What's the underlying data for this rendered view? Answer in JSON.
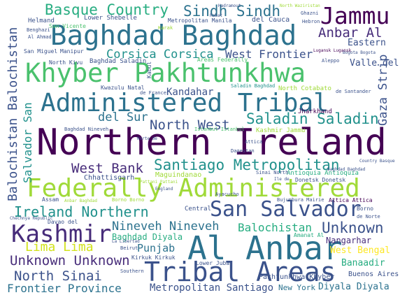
{
  "words": [
    {
      "text": "Northern Ireland",
      "color": "#440154"
    },
    {
      "text": "Federally Administered",
      "color": "#a0da39"
    },
    {
      "text": "Khyber Pakhtunkhwa",
      "color": "#4ac16d"
    },
    {
      "text": "Administered Tribal",
      "color": "#2c728e"
    },
    {
      "text": "Baghdad Baghdad",
      "color": "#2c728e"
    },
    {
      "text": "Al Anbar",
      "color": "#2c728e"
    },
    {
      "text": "Tribal Areas",
      "color": "#3b528b"
    },
    {
      "text": "Kashmir",
      "color": "#472c7a"
    },
    {
      "text": "San Salvador",
      "color": "#3b528b"
    },
    {
      "text": "Jammu",
      "color": "#440154"
    },
    {
      "text": "Santiago Metropolitan",
      "color": "#21918c"
    },
    {
      "text": "Basque Country",
      "color": "#27ad81"
    },
    {
      "text": "Sindh Sindh",
      "color": "#2c728e"
    },
    {
      "text": "Saladin Saladin",
      "color": "#21918c"
    },
    {
      "text": "Corsica Corsica",
      "color": "#21918c"
    },
    {
      "text": "Ireland Northern",
      "color": "#21918c"
    },
    {
      "text": "Balochistan Balochistan",
      "color": "#3b528b"
    },
    {
      "text": "West Bank",
      "color": "#472c7a"
    },
    {
      "text": "North West",
      "color": "#3b528b"
    },
    {
      "text": "Unknown Unknown",
      "color": "#472c7a"
    },
    {
      "text": "Unknown",
      "color": "#3b528b"
    },
    {
      "text": "Frontier Province",
      "color": "#2c728e"
    },
    {
      "text": "North Sinai",
      "color": "#3b528b"
    },
    {
      "text": "Nineveh Nineveh",
      "color": "#2c728e"
    },
    {
      "text": "Lima Lima",
      "color": "#d2e21b"
    },
    {
      "text": "Metropolitan Santiago",
      "color": "#3b528b"
    },
    {
      "text": "Balochistan",
      "color": "#27ad81"
    },
    {
      "text": "Anbar Al",
      "color": "#472c7a"
    },
    {
      "text": "West Frontier",
      "color": "#3b528b"
    },
    {
      "text": "Kandahar",
      "color": "#3b528b"
    },
    {
      "text": "del Sur",
      "color": "#2c728e"
    },
    {
      "text": "Salvador San",
      "color": "#21918c"
    },
    {
      "text": "Gaza Strip",
      "color": "#3b528b"
    },
    {
      "text": "Punjab",
      "color": "#2c728e"
    },
    {
      "text": "Nangarhar",
      "color": "#472c7a"
    },
    {
      "text": "Banaadir",
      "color": "#27ad81"
    },
    {
      "text": "West Bengal",
      "color": "#fde725"
    },
    {
      "text": "Diyala Diyala",
      "color": "#2c728e"
    },
    {
      "text": "New York",
      "color": "#2c728e"
    },
    {
      "text": "Buenos Aires",
      "color": "#3b528b"
    },
    {
      "text": "Baghdad Diyala",
      "color": "#27ad81"
    },
    {
      "text": "Pakhtunkhwa Khyber",
      "color": "#3b528b"
    },
    {
      "text": "Eastern",
      "color": "#3b528b"
    },
    {
      "text": "Valle del",
      "color": "#3b528b"
    },
    {
      "text": "Chhattisgarh",
      "color": "#3b528b"
    },
    {
      "text": "Jharkhand",
      "color": "#440154"
    },
    {
      "text": "Maguindanao",
      "color": "#a0da39"
    },
    {
      "text": "Antioquia Antioquia",
      "color": "#27ad81"
    },
    {
      "text": "Donetsk Donetsk",
      "color": "#3b528b"
    },
    {
      "text": "Kashmir Jammu",
      "color": "#a0da39"
    },
    {
      "text": "Areas Federally",
      "color": "#4ac16d"
    },
    {
      "text": "North Kivu",
      "color": "#3b528b"
    },
    {
      "text": "Baghdad Saladin",
      "color": "#3b528b"
    },
    {
      "text": "Central",
      "color": "#3b528b"
    },
    {
      "text": "Lower Shebelle",
      "color": "#3b528b"
    },
    {
      "text": "Metropolitan Manila",
      "color": "#3b528b"
    },
    {
      "text": "Helmand",
      "color": "#3b528b"
    },
    {
      "text": "San Vicente",
      "color": "#4ac16d"
    },
    {
      "text": "Karak",
      "color": "#a0da39"
    },
    {
      "text": "Benghazi",
      "color": "#3b528b"
    },
    {
      "text": "Al Ahmad",
      "color": "#3b528b"
    },
    {
      "text": "San Miguel",
      "color": "#3b528b"
    },
    {
      "text": "Manipur",
      "color": "#3b528b"
    },
    {
      "text": "Hebron",
      "color": "#3b528b"
    },
    {
      "text": "Aleppo",
      "color": "#3b528b"
    },
    {
      "text": "Kabul",
      "color": "#3b528b"
    },
    {
      "text": "del Cauca",
      "color": "#3b528b"
    },
    {
      "text": "North Waziristan",
      "color": "#a0da39"
    },
    {
      "text": "Ghazni",
      "color": "#3b528b"
    },
    {
      "text": "Hadramout",
      "color": "#3b528b"
    },
    {
      "text": "Kwazulu Natal",
      "color": "#3b528b"
    },
    {
      "text": "de France",
      "color": "#3b528b"
    },
    {
      "text": "North Cotabato",
      "color": "#a0da39"
    },
    {
      "text": "Saladin Baghdad",
      "color": "#21918c"
    },
    {
      "text": "de Santander",
      "color": "#3b528b"
    },
    {
      "text": "Baghdad Nineveh",
      "color": "#3b528b"
    },
    {
      "text": "Istanbul Istanbul",
      "color": "#4ac16d"
    },
    {
      "text": "Dagestan",
      "color": "#3b528b"
    },
    {
      "text": "Attica",
      "color": "#3b528b"
    },
    {
      "text": "Sinai North",
      "color": "#3b528b"
    },
    {
      "text": "Pattani Pattani",
      "color": "#a0da39"
    },
    {
      "text": "England",
      "color": "#3b528b"
    },
    {
      "text": "Ayacucho",
      "color": "#3b528b"
    },
    {
      "text": "Bujumbura Mairie",
      "color": "#3b528b"
    },
    {
      "text": "Attica Attica",
      "color": "#440154"
    },
    {
      "text": "Borno",
      "color": "#3b528b"
    },
    {
      "text": "de Norte",
      "color": "#3b528b"
    },
    {
      "text": "Assam",
      "color": "#3b528b"
    },
    {
      "text": "Anbar Baghdad",
      "color": "#a0da39"
    },
    {
      "text": "Borno Borno",
      "color": "#a0da39"
    },
    {
      "text": "Davao del",
      "color": "#3b528b"
    },
    {
      "text": "Chechnya Republic",
      "color": "#3b528b"
    },
    {
      "text": "Beirut",
      "color": "#3b528b"
    },
    {
      "text": "Kirkuk Kirkuk",
      "color": "#3b528b"
    },
    {
      "text": "Lower Juba",
      "color": "#3b528b"
    },
    {
      "text": "Southern",
      "color": "#3b528b"
    },
    {
      "text": "Amanat Al",
      "color": "#27ad81"
    },
    {
      "text": "Baghdad Baghdad",
      "color": "#3b528b"
    },
    {
      "text": "Country Basque",
      "color": "#3b528b"
    },
    {
      "text": "Norte de",
      "color": "#3b528b"
    },
    {
      "text": "Ile de",
      "color": "#3b528b"
    },
    {
      "text": "Rabat",
      "color": "#3b528b"
    },
    {
      "text": "La Libertad",
      "color": "#3b528b"
    },
    {
      "text": "Bogota Bogota",
      "color": "#3b528b"
    },
    {
      "text": "Lugansk Lugansk",
      "color": "#440154"
    }
  ]
}
